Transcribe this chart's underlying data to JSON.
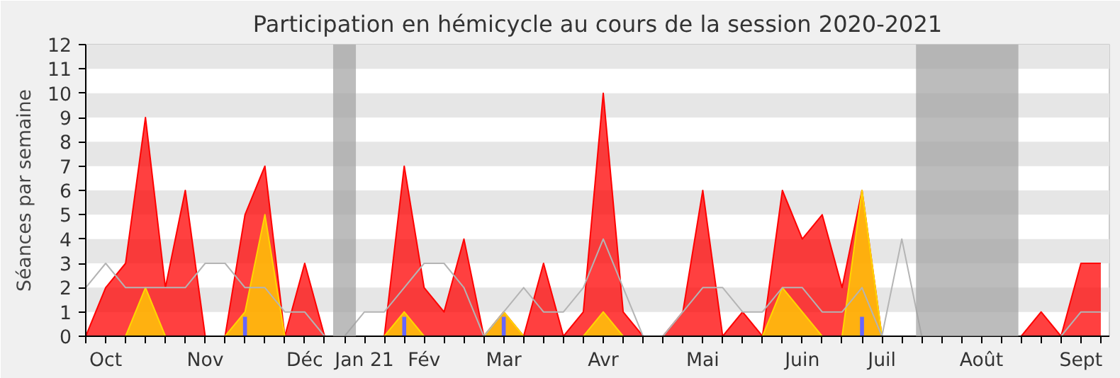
{
  "chart_data": {
    "type": "area",
    "title": "Participation en hémicycle au cours de la session 2020-2021",
    "ylabel": "Séances par semaine",
    "x": [
      "2020-10-05",
      "2020-10-12",
      "2020-10-19",
      "2020-10-26",
      "2020-11-02",
      "2020-11-09",
      "2020-11-16",
      "2020-11-23",
      "2020-11-30",
      "2020-12-07",
      "2020-12-14",
      "2020-12-21",
      "2020-12-28",
      "2021-01-04",
      "2021-01-11",
      "2021-01-18",
      "2021-01-25",
      "2021-02-01",
      "2021-02-08",
      "2021-02-15",
      "2021-02-22",
      "2021-03-01",
      "2021-03-08",
      "2021-03-15",
      "2021-03-22",
      "2021-03-29",
      "2021-04-05",
      "2021-04-12",
      "2021-04-19",
      "2021-04-26",
      "2021-05-03",
      "2021-05-10",
      "2021-05-17",
      "2021-05-24",
      "2021-05-31",
      "2021-06-07",
      "2021-06-14",
      "2021-06-21",
      "2021-06-28",
      "2021-07-05",
      "2021-07-12",
      "2021-07-19",
      "2021-07-26",
      "2021-08-02",
      "2021-08-09",
      "2021-08-16",
      "2021-08-23",
      "2021-08-30",
      "2021-09-06",
      "2021-09-13",
      "2021-09-20",
      "2021-09-27"
    ],
    "series": [
      {
        "color": "#ff0000",
        "values": [
          0,
          2,
          3,
          9,
          2,
          6,
          0,
          0,
          5,
          7,
          0,
          3,
          0,
          0,
          0,
          0,
          7,
          2,
          1,
          4,
          0,
          1,
          0,
          3,
          0,
          1,
          10,
          1,
          0,
          0,
          1,
          6,
          0,
          1,
          0,
          6,
          4,
          5,
          2,
          6,
          0,
          0,
          0,
          0,
          0,
          0,
          0,
          0,
          1,
          0,
          3,
          3
        ]
      },
      {
        "color": "#ffd700",
        "values": [
          0,
          0,
          0,
          2,
          0,
          0,
          0,
          0,
          1,
          5,
          0,
          0,
          0,
          0,
          0,
          0,
          1,
          0,
          0,
          0,
          0,
          1,
          0,
          0,
          0,
          0,
          1,
          0,
          0,
          0,
          0,
          0,
          0,
          0,
          0,
          2,
          1,
          0,
          0,
          6,
          0,
          0,
          0,
          0,
          0,
          0,
          0,
          0,
          0,
          0,
          0,
          0
        ]
      },
      {
        "type": "bar",
        "color": "#6666ff",
        "values": [
          null,
          null,
          null,
          null,
          null,
          null,
          null,
          null,
          0.8,
          null,
          null,
          null,
          null,
          null,
          null,
          null,
          0.8,
          null,
          null,
          null,
          null,
          0.8,
          null,
          null,
          null,
          null,
          null,
          null,
          null,
          null,
          null,
          null,
          null,
          null,
          null,
          null,
          null,
          null,
          null,
          0.8,
          null,
          null,
          null,
          null,
          null,
          null,
          null,
          null,
          null,
          null,
          null,
          null
        ]
      },
      {
        "type": "line",
        "color": "#b4b4b4",
        "values": [
          2,
          3,
          2,
          2,
          2,
          2,
          3,
          3,
          2,
          2,
          1,
          1,
          0,
          0,
          1,
          1,
          2,
          3,
          3,
          2,
          0,
          1,
          2,
          1,
          1,
          2,
          4,
          2,
          0,
          0,
          1,
          2,
          2,
          1,
          1,
          2,
          2,
          1,
          1,
          2,
          0,
          4,
          0,
          0,
          0,
          0,
          0,
          0,
          0,
          0,
          1,
          1
        ]
      }
    ],
    "xlim": [
      "2020-10-05",
      "2021-09-30"
    ],
    "xticks": [
      {
        "value": "2020-10-05",
        "label": null
      },
      {
        "value": "2020-10-12",
        "label": "Oct"
      },
      {
        "value": "2020-10-19",
        "label": null
      },
      {
        "value": "2020-10-26",
        "label": null
      },
      {
        "value": "2020-11-02",
        "label": null
      },
      {
        "value": "2020-11-09",
        "label": null
      },
      {
        "value": "2020-11-16",
        "label": "Nov"
      },
      {
        "value": "2020-11-23",
        "label": null
      },
      {
        "value": "2020-11-30",
        "label": null
      },
      {
        "value": "2020-12-07",
        "label": null
      },
      {
        "value": "2020-12-14",
        "label": null
      },
      {
        "value": "2020-12-21",
        "label": "Déc"
      },
      {
        "value": "2020-12-28",
        "label": null
      },
      {
        "value": "2021-01-04",
        "label": null
      },
      {
        "value": "2021-01-11",
        "label": "Jan 21"
      },
      {
        "value": "2021-01-18",
        "label": null
      },
      {
        "value": "2021-01-25",
        "label": null
      },
      {
        "value": "2021-02-01",
        "label": "Fév"
      },
      {
        "value": "2021-02-08",
        "label": null
      },
      {
        "value": "2021-02-15",
        "label": null
      },
      {
        "value": "2021-02-22",
        "label": null
      },
      {
        "value": "2021-03-01",
        "label": "Mar"
      },
      {
        "value": "2021-03-08",
        "label": null
      },
      {
        "value": "2021-03-15",
        "label": null
      },
      {
        "value": "2021-03-22",
        "label": null
      },
      {
        "value": "2021-03-29",
        "label": null
      },
      {
        "value": "2021-04-05",
        "label": "Avr"
      },
      {
        "value": "2021-04-12",
        "label": null
      },
      {
        "value": "2021-04-19",
        "label": null
      },
      {
        "value": "2021-04-26",
        "label": null
      },
      {
        "value": "2021-05-03",
        "label": null
      },
      {
        "value": "2021-05-10",
        "label": "Mai"
      },
      {
        "value": "2021-05-17",
        "label": null
      },
      {
        "value": "2021-05-24",
        "label": null
      },
      {
        "value": "2021-05-31",
        "label": null
      },
      {
        "value": "2021-06-07",
        "label": null
      },
      {
        "value": "2021-06-14",
        "label": "Juin"
      },
      {
        "value": "2021-06-21",
        "label": null
      },
      {
        "value": "2021-06-28",
        "label": null
      },
      {
        "value": "2021-07-05",
        "label": null
      },
      {
        "value": "2021-07-12",
        "label": "Juil"
      },
      {
        "value": "2021-07-19",
        "label": null
      },
      {
        "value": "2021-07-26",
        "label": null
      },
      {
        "value": "2021-08-02",
        "label": null
      },
      {
        "value": "2021-08-09",
        "label": null
      },
      {
        "value": "2021-08-16",
        "label": "Août"
      },
      {
        "value": "2021-08-23",
        "label": null
      },
      {
        "value": "2021-08-30",
        "label": null
      },
      {
        "value": "2021-09-06",
        "label": null
      },
      {
        "value": "2021-09-13",
        "label": null
      },
      {
        "value": "2021-09-20",
        "label": "Sept"
      },
      {
        "value": "2021-09-27",
        "label": null
      }
    ],
    "ylim": [
      0,
      12
    ],
    "yticks": [
      0,
      1,
      2,
      3,
      4,
      5,
      6,
      7,
      8,
      9,
      10,
      11,
      12
    ],
    "bands": [
      {
        "axis": "x",
        "from": "2020-12-31",
        "to": "2021-01-08",
        "color": "#a0a0a0"
      },
      {
        "axis": "x",
        "from": "2021-07-24",
        "to": "2021-08-29",
        "color": "#a0a0a0"
      }
    ]
  }
}
